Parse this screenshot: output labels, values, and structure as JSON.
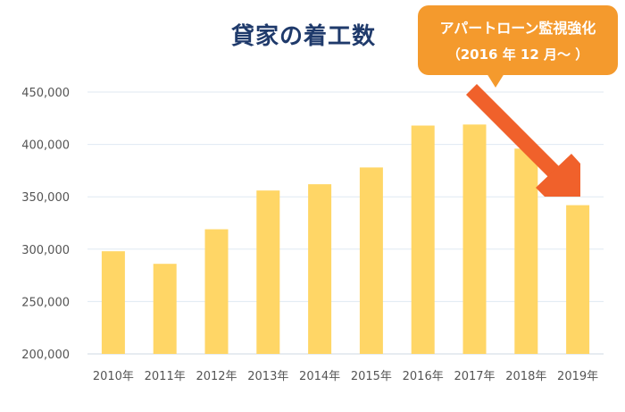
{
  "chart_data": {
    "type": "bar",
    "title": "貸家の着工数",
    "categories": [
      "2010年",
      "2011年",
      "2012年",
      "2013年",
      "2014年",
      "2015年",
      "2016年",
      "2017年",
      "2018年",
      "2019年"
    ],
    "values": [
      298000,
      286000,
      319000,
      356000,
      362000,
      378000,
      418000,
      419000,
      396000,
      342000
    ],
    "ylim": [
      200000,
      450000
    ],
    "yticks": [
      200000,
      250000,
      300000,
      350000,
      400000,
      450000
    ],
    "ytick_labels": [
      "200,000",
      "250,000",
      "300,000",
      "350,000",
      "400,000",
      "450,000"
    ],
    "xlabel": "",
    "ylabel": "",
    "grid": true,
    "bar_color": "#ffd666",
    "annotation": {
      "line1": "アパートローン監視強化",
      "line2": "（2016 年 12 月〜 ）",
      "color": "#f49a2d",
      "arrow_color": "#f0612b"
    }
  }
}
